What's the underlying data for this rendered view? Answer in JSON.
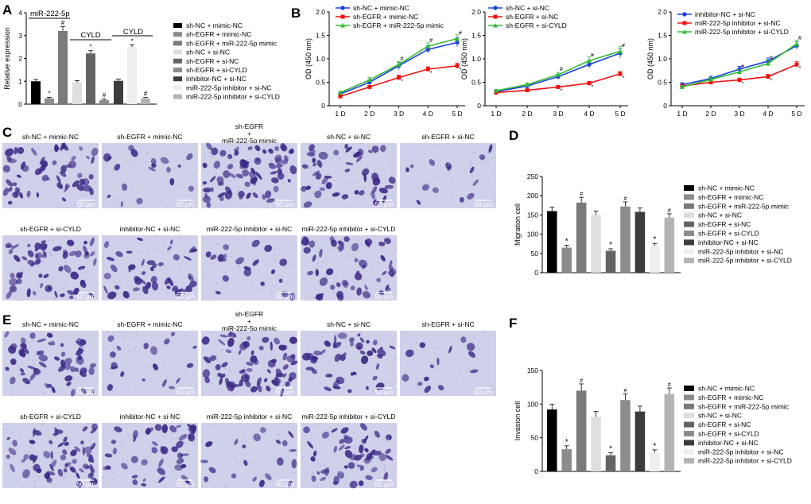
{
  "panel_labels": {
    "A": "A",
    "B": "B",
    "C": "C",
    "D": "D",
    "E": "E",
    "F": "F"
  },
  "colors": {
    "black": "#000000",
    "dark_gray": "#3c3c3c",
    "mid_gray": "#646464",
    "mid_gray2": "#7a7a7a",
    "gray": "#8c8c8c",
    "light_gray": "#b4b4b4",
    "very_light": "#dedede",
    "blue": "#1a3fe0",
    "red": "#ee1111",
    "green": "#33bb33",
    "cell_bg": "#cfd0ea",
    "cell_dark": "#3a2a86"
  },
  "legend_A": [
    "sh-NC + mimic-NC",
    "sh-EGFR + mimic-NC",
    "sh-EGFR + miR-222-5p mimic",
    "sh-NC + si-NC",
    "sh-EGFR + si-NC",
    "sh-EGFR + si-CYLD",
    "inhibitor-NC + si-NC",
    "miR-222-5p inhibitor + si-NC",
    "miR-222-5p inhibitor + si-CYLD"
  ],
  "legend_D": [
    "sh-NC + mimic-NC",
    "sh-EGFR + mimic-NC",
    "sh-EGFR + miR-222-5p mimic",
    "sh-NC + si-NC",
    "sh-EGFR + si-NC",
    "sh-EGFR + si-CYLD",
    "inhibitor-NC + si-NC",
    "miR-222-5p inhibitor + si-NC",
    "miR-222-5p inhibitor + si-CYLD"
  ],
  "legend_F": [
    "sh-NC + mimic-NC",
    "sh-EGFR + mimic-NC",
    "sh-EGFR + miR-222-5p mimic",
    "sh-NC + si-NC",
    "sh-EGFR + si-NC",
    "sh-EGFR + si-CYLD",
    "inhibitor-NC + si-NC",
    "miR-222-5p inhibitor + si-NC",
    "miR-222-5p inhibitor + si-CYLD"
  ],
  "micrographs_C": {
    "labels": [
      "sh-NC + mimic-NC",
      "sh-EGFR + mimic-NC",
      "sh-EGFR\n+\nmiR-222-5p mimic",
      "sh-NC + si-NC",
      "sh-EGFR + si-NC",
      "sh-EGFR + si-CYLD",
      "inhibitor-NC + si-NC",
      "miR-222-5p inhibitor + si-NC",
      "miR-222-5p inhibitor + si-CYLD"
    ],
    "scale": "50 μm"
  },
  "micrographs_E": {
    "labels": [
      "sh-NC + mimic-NC",
      "sh-EGFR + mimic-NC",
      "sh-EGFR\n+\nmiR-222-5p mimic",
      "sh-NC + si-NC",
      "sh-EGFR + si-NC",
      "sh-EGFR + si-CYLD",
      "inhibitor-NC + si-NC",
      "miR-222-5p inhibitor + si-NC",
      "miR-222-5p inhibitor + si-CYLD"
    ],
    "scale": "50 μm"
  },
  "chart_data": [
    {
      "id": "A",
      "type": "bar",
      "ylabel": "Relative expression",
      "ylim": [
        0,
        4
      ],
      "yticks": [
        0,
        1,
        2,
        3,
        4
      ],
      "groups": [
        {
          "label": "miR-222-5p",
          "values": [
            1.0,
            0.25,
            3.2
          ],
          "errors": [
            0.08,
            0.05,
            0.2
          ],
          "marks": [
            "",
            "*",
            "#"
          ]
        },
        {
          "label": "CYLD",
          "values": [
            0.95,
            2.22,
            0.18
          ],
          "errors": [
            0.08,
            0.12,
            0.04
          ],
          "marks": [
            "",
            "*",
            "#"
          ]
        },
        {
          "label": "CYLD",
          "values": [
            1.02,
            2.5,
            0.25
          ],
          "errors": [
            0.08,
            0.1,
            0.04
          ],
          "marks": [
            "",
            "*",
            "#"
          ]
        }
      ]
    },
    {
      "id": "B1",
      "type": "line",
      "ylabel": "OD (450 nm)",
      "ylim": [
        0,
        2.0
      ],
      "yticks": [
        "0",
        "0.5",
        "1.0",
        "1.5",
        "2.0"
      ],
      "x": [
        "1 D",
        "2 D",
        "3 D",
        "4 D",
        "5 D"
      ],
      "series": [
        {
          "name": "sh-NC + mimic-NC",
          "color": "blue",
          "values": [
            0.25,
            0.5,
            0.85,
            1.2,
            1.35
          ],
          "errors": [
            0.03,
            0.05,
            0.08,
            0.08,
            0.1
          ],
          "marks": [
            "",
            "",
            "",
            "",
            ""
          ]
        },
        {
          "name": "sh-EGFR + mimic-NC",
          "color": "red",
          "values": [
            0.2,
            0.4,
            0.6,
            0.78,
            0.85
          ],
          "errors": [
            0.03,
            0.03,
            0.05,
            0.05,
            0.06
          ],
          "marks": [
            "",
            "",
            "*",
            "*",
            "*"
          ]
        },
        {
          "name": "sh-EGFR + miR-222-5p mimic",
          "color": "green",
          "values": [
            0.28,
            0.55,
            0.88,
            1.27,
            1.43
          ],
          "errors": [
            0.03,
            0.05,
            0.06,
            0.07,
            0.08
          ],
          "marks": [
            "",
            "",
            "#",
            "#",
            "#"
          ]
        }
      ]
    },
    {
      "id": "B2",
      "type": "line",
      "ylabel": "OD (450 nm)",
      "ylim": [
        0,
        2.0
      ],
      "yticks": [
        "0",
        "0.5",
        "1.0",
        "1.5",
        "2.0"
      ],
      "x": [
        "1 D",
        "2 D",
        "3 D",
        "4 D",
        "5 D"
      ],
      "series": [
        {
          "name": "sh-NC + si-NC",
          "color": "blue",
          "values": [
            0.3,
            0.42,
            0.62,
            0.88,
            1.12
          ],
          "errors": [
            0.03,
            0.04,
            0.05,
            0.08,
            0.1
          ],
          "marks": [
            "",
            "",
            "",
            "",
            ""
          ]
        },
        {
          "name": "sh-EGFR + si-NC",
          "color": "red",
          "values": [
            0.28,
            0.33,
            0.4,
            0.48,
            0.68
          ],
          "errors": [
            0.02,
            0.03,
            0.03,
            0.04,
            0.05
          ],
          "marks": [
            "",
            "",
            "*",
            "*",
            "*"
          ]
        },
        {
          "name": "sh-EGFR + si-CYLD",
          "color": "green",
          "values": [
            0.32,
            0.45,
            0.66,
            0.96,
            1.16
          ],
          "errors": [
            0.03,
            0.04,
            0.05,
            0.08,
            0.1
          ],
          "marks": [
            "",
            "",
            "#",
            "#",
            "#"
          ]
        }
      ]
    },
    {
      "id": "B3",
      "type": "line",
      "ylabel": "OD (450 nm)",
      "ylim": [
        0,
        2.0
      ],
      "yticks": [
        "0",
        "0.5",
        "1.0",
        "1.5",
        "2.0"
      ],
      "x": [
        "1 D",
        "2 D",
        "3 D",
        "4 D",
        "5 D"
      ],
      "series": [
        {
          "name": "inhibitor-NC + si-NC",
          "color": "blue",
          "values": [
            0.45,
            0.58,
            0.78,
            0.95,
            1.28
          ],
          "errors": [
            0.04,
            0.05,
            0.06,
            0.07,
            0.08
          ],
          "marks": [
            "",
            "",
            "",
            "",
            ""
          ]
        },
        {
          "name": "miR-222-5p inhibitor + si-NC",
          "color": "red",
          "values": [
            0.42,
            0.5,
            0.55,
            0.62,
            0.88
          ],
          "errors": [
            0.03,
            0.04,
            0.04,
            0.05,
            0.06
          ],
          "marks": [
            "",
            "",
            "*",
            "*",
            "*"
          ]
        },
        {
          "name": "miR-222-5p inhibitor + si-CYLD",
          "color": "green",
          "values": [
            0.4,
            0.56,
            0.72,
            0.9,
            1.32
          ],
          "errors": [
            0.03,
            0.04,
            0.05,
            0.06,
            0.08
          ],
          "marks": [
            "",
            "",
            "#",
            "#",
            "#"
          ]
        }
      ]
    },
    {
      "id": "D",
      "type": "bar",
      "ylabel": "Migration cell",
      "ylim": [
        0,
        250
      ],
      "yticks": [
        0,
        50,
        100,
        150,
        200,
        250
      ],
      "values": [
        160,
        65,
        182,
        150,
        57,
        172,
        158,
        70,
        143
      ],
      "errors": [
        10,
        6,
        14,
        10,
        5,
        12,
        10,
        6,
        10
      ],
      "marks": [
        "",
        "*",
        "#",
        "",
        "*",
        "#",
        "",
        "*",
        "#"
      ]
    },
    {
      "id": "F",
      "type": "bar",
      "ylabel": "Invasion cell",
      "ylim": [
        0,
        150
      ],
      "yticks": [
        0,
        50,
        100,
        150
      ],
      "values": [
        92,
        33,
        120,
        81,
        24,
        106,
        89,
        28,
        115
      ],
      "errors": [
        8,
        5,
        10,
        8,
        4,
        9,
        8,
        4,
        9
      ],
      "marks": [
        "",
        "*",
        "#",
        "",
        "*",
        "#",
        "",
        "*",
        "#"
      ]
    }
  ]
}
